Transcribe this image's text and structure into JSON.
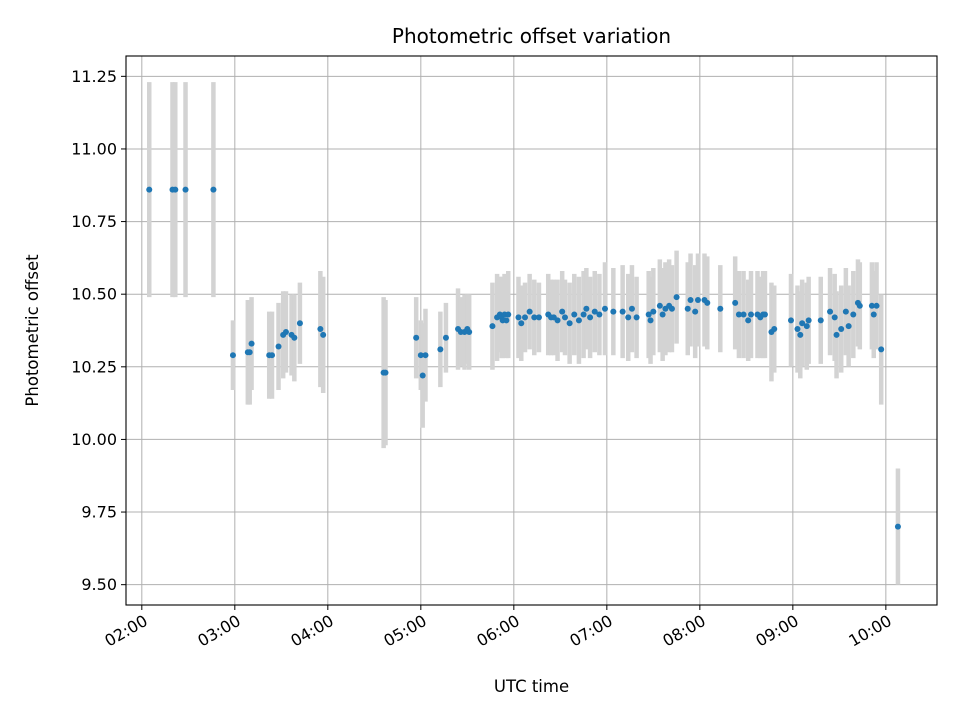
{
  "chart_data": {
    "type": "scatter",
    "title": "Photometric offset variation",
    "xlabel": "UTC time",
    "ylabel": "Photometric offset",
    "x_unit": "UTC hour of day",
    "xlim": [
      1.83,
      10.55
    ],
    "ylim": [
      9.43,
      11.32
    ],
    "x_ticks": [
      2,
      3,
      4,
      5,
      6,
      7,
      8,
      9,
      10
    ],
    "x_tick_labels": [
      "02:00",
      "03:00",
      "04:00",
      "05:00",
      "06:00",
      "07:00",
      "08:00",
      "09:00",
      "10:00"
    ],
    "y_ticks": [
      9.5,
      9.75,
      10.0,
      10.25,
      10.5,
      10.75,
      11.0,
      11.25
    ],
    "y_tick_labels": [
      "9.50",
      "9.75",
      "10.00",
      "10.25",
      "10.50",
      "10.75",
      "11.00",
      "11.25"
    ],
    "grid": true,
    "colors": {
      "points": "#1f77b4",
      "error_bars": "#d3d3d3",
      "grid": "#b0b0b0"
    },
    "series": [
      {
        "x": [
          2.08,
          2.33,
          2.36,
          2.47,
          2.77,
          2.98,
          3.14,
          3.16,
          3.18,
          3.37,
          3.4,
          3.47,
          3.52,
          3.55,
          3.61,
          3.64,
          3.7,
          3.92,
          3.95,
          4.6,
          4.62,
          4.95,
          5.0,
          5.02,
          5.05,
          5.21,
          5.27,
          5.4,
          5.43,
          5.47,
          5.5,
          5.52,
          5.77,
          5.82,
          5.85,
          5.87,
          5.88,
          5.9,
          5.92,
          5.94,
          6.05,
          6.08,
          6.12,
          6.17,
          6.22,
          6.27,
          6.37,
          6.4,
          6.43,
          6.47,
          6.52,
          6.55,
          6.6,
          6.65,
          6.7,
          6.75,
          6.78,
          6.82,
          6.87,
          6.92,
          6.98,
          7.07,
          7.17,
          7.23,
          7.27,
          7.32,
          7.45,
          7.47,
          7.5,
          7.57,
          7.6,
          7.63,
          7.67,
          7.7,
          7.75,
          7.87,
          7.9,
          7.95,
          7.98,
          8.05,
          8.08,
          8.22,
          8.38,
          8.42,
          8.47,
          8.52,
          8.55,
          8.62,
          8.65,
          8.68,
          8.7,
          8.77,
          8.8,
          8.98,
          9.05,
          9.08,
          9.1,
          9.15,
          9.17,
          9.3,
          9.4,
          9.45,
          9.47,
          9.52,
          9.57,
          9.6,
          9.65,
          9.7,
          9.72,
          9.85,
          9.87,
          9.9,
          9.95,
          10.13
        ],
        "y": [
          10.86,
          10.86,
          10.86,
          10.86,
          10.86,
          10.29,
          10.3,
          10.3,
          10.33,
          10.29,
          10.29,
          10.32,
          10.36,
          10.37,
          10.36,
          10.35,
          10.4,
          10.38,
          10.36,
          10.23,
          10.23,
          10.35,
          10.29,
          10.22,
          10.29,
          10.31,
          10.35,
          10.38,
          10.37,
          10.37,
          10.38,
          10.37,
          10.39,
          10.42,
          10.43,
          10.42,
          10.41,
          10.43,
          10.41,
          10.43,
          10.42,
          10.4,
          10.42,
          10.44,
          10.42,
          10.42,
          10.43,
          10.42,
          10.42,
          10.41,
          10.44,
          10.42,
          10.4,
          10.43,
          10.41,
          10.43,
          10.45,
          10.42,
          10.44,
          10.43,
          10.45,
          10.44,
          10.44,
          10.42,
          10.45,
          10.42,
          10.43,
          10.41,
          10.44,
          10.46,
          10.43,
          10.45,
          10.46,
          10.45,
          10.49,
          10.45,
          10.48,
          10.44,
          10.48,
          10.48,
          10.47,
          10.45,
          10.47,
          10.43,
          10.43,
          10.41,
          10.43,
          10.43,
          10.42,
          10.43,
          10.43,
          10.37,
          10.38,
          10.41,
          10.38,
          10.36,
          10.4,
          10.39,
          10.41,
          10.41,
          10.44,
          10.42,
          10.36,
          10.38,
          10.44,
          10.39,
          10.43,
          10.47,
          10.46,
          10.46,
          10.43,
          10.46,
          10.31,
          9.7
        ],
        "err": [
          0.37,
          0.37,
          0.37,
          0.37,
          0.37,
          0.12,
          0.18,
          0.18,
          0.16,
          0.15,
          0.15,
          0.15,
          0.15,
          0.14,
          0.14,
          0.15,
          0.14,
          0.2,
          0.2,
          0.26,
          0.25,
          0.14,
          0.12,
          0.18,
          0.16,
          0.13,
          0.12,
          0.14,
          0.12,
          0.13,
          0.12,
          0.13,
          0.15,
          0.15,
          0.13,
          0.14,
          0.13,
          0.14,
          0.13,
          0.15,
          0.14,
          0.13,
          0.12,
          0.13,
          0.13,
          0.12,
          0.14,
          0.13,
          0.13,
          0.14,
          0.14,
          0.13,
          0.14,
          0.14,
          0.15,
          0.15,
          0.14,
          0.14,
          0.14,
          0.14,
          0.16,
          0.15,
          0.16,
          0.15,
          0.15,
          0.14,
          0.15,
          0.15,
          0.15,
          0.16,
          0.16,
          0.16,
          0.16,
          0.15,
          0.16,
          0.16,
          0.16,
          0.16,
          0.16,
          0.16,
          0.16,
          0.15,
          0.16,
          0.15,
          0.15,
          0.14,
          0.15,
          0.15,
          0.14,
          0.15,
          0.15,
          0.17,
          0.15,
          0.16,
          0.15,
          0.15,
          0.15,
          0.15,
          0.15,
          0.15,
          0.15,
          0.15,
          0.15,
          0.15,
          0.15,
          0.14,
          0.15,
          0.15,
          0.15,
          0.15,
          0.15,
          0.15,
          0.19,
          0.2
        ]
      }
    ]
  }
}
